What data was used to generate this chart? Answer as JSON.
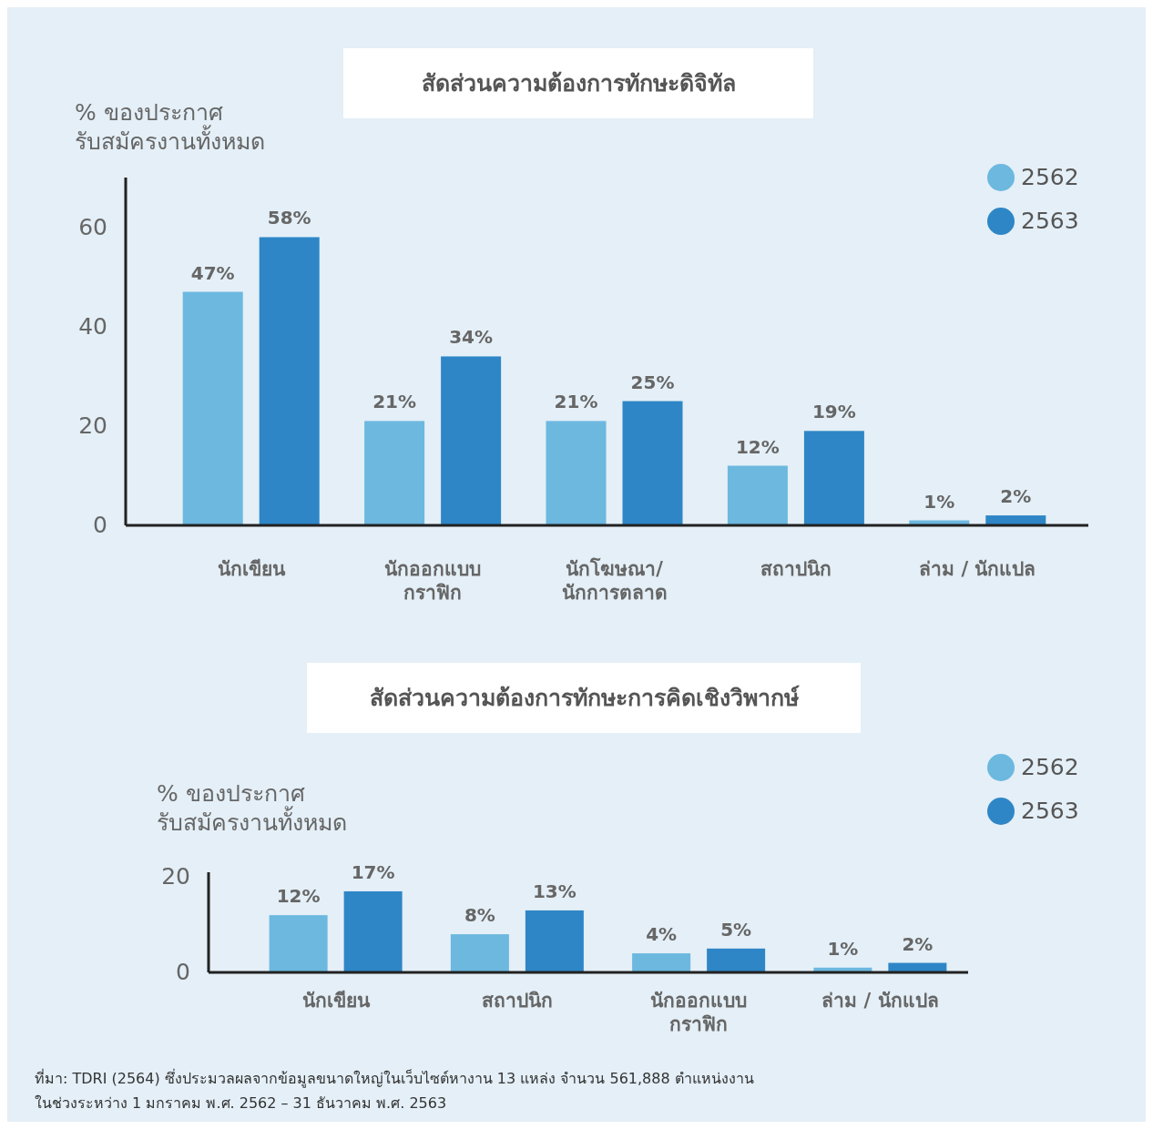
{
  "chart_data": [
    {
      "type": "bar",
      "title": "สัดส่วนความต้องการทักษะดิจิทัล",
      "ylabel": "% ของประกาศ\nรับสมัครงานทั้งหมด",
      "categories": [
        "นักเขียน",
        "นักออกแบบ\nกราฟิก",
        "นักโฆษณา/\nนักการตลาด",
        "สถาปนิก",
        "ล่าม / นักแปล"
      ],
      "series": [
        {
          "name": "2562",
          "color": "#6cb8df",
          "values": [
            47,
            21,
            21,
            12,
            1
          ],
          "value_labels": [
            "47%",
            "21%",
            "21%",
            "12%",
            "1%"
          ]
        },
        {
          "name": "2563",
          "color": "#2e86c6",
          "values": [
            58,
            34,
            25,
            19,
            2
          ],
          "value_labels": [
            "58%",
            "34%",
            "25%",
            "19%",
            "2%"
          ]
        }
      ],
      "ylim": [
        0,
        70
      ],
      "yticks": [
        0,
        20,
        40,
        60
      ],
      "legend": "top right"
    },
    {
      "type": "bar",
      "title": "สัดส่วนความต้องการทักษะการคิดเชิงวิพากษ์",
      "ylabel": "% ของประกาศ\nรับสมัครงานทั้งหมด",
      "categories": [
        "นักเขียน",
        "สถาปนิก",
        "นักออกแบบ\nกราฟิก",
        "ล่าม / นักแปล"
      ],
      "series": [
        {
          "name": "2562",
          "color": "#6cb8df",
          "values": [
            12,
            8,
            4,
            1
          ],
          "value_labels": [
            "12%",
            "8%",
            "4%",
            "1%"
          ]
        },
        {
          "name": "2563",
          "color": "#2e86c6",
          "values": [
            17,
            13,
            5,
            2
          ],
          "value_labels": [
            "17%",
            "13%",
            "5%",
            "2%"
          ]
        }
      ],
      "ylim": [
        0,
        21
      ],
      "yticks": [
        0,
        20
      ],
      "legend": "top right",
      "annotations": [
        "ที่มา: TDRI (2564) ซึ่งประมวลผลจากข้อมูลขนาดใหญ่ในเว็บไซต์หางาน 13 แหล่ง จำนวน 561,888 ตำแหน่งงาน",
        "ในช่วงระหว่าง 1 มกราคม พ.ศ. 2562 – 31 ธันวาคม พ.ศ. 2563"
      ]
    }
  ]
}
